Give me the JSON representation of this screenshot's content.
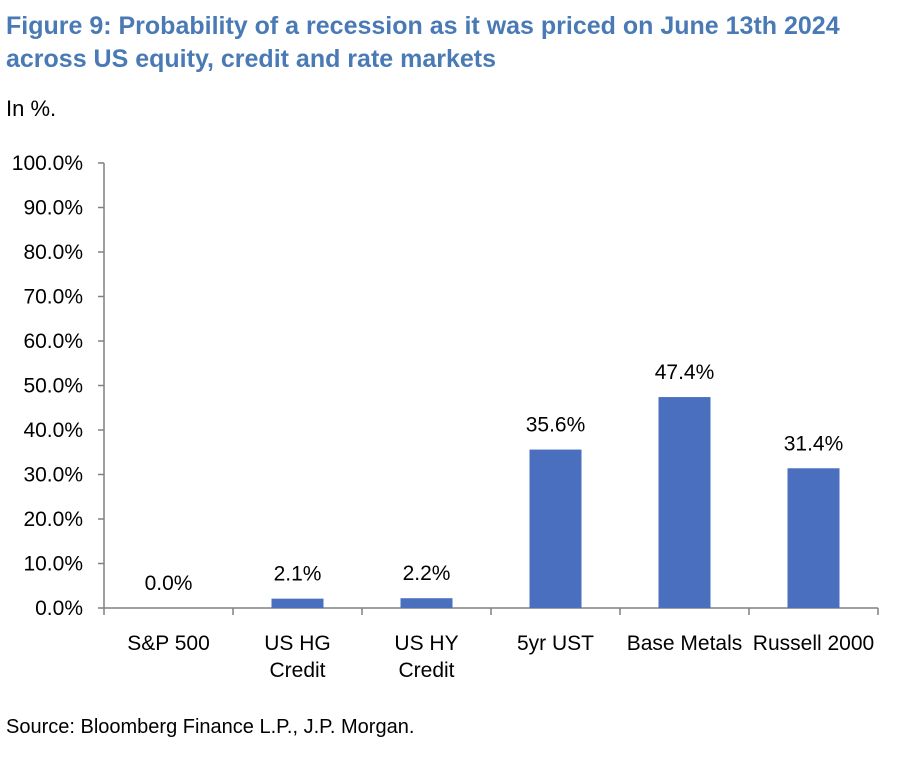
{
  "header": {
    "title_line1": "Figure 9: Probability of a recession as it was priced on June 13th 2024",
    "title_line2": "across US equity, credit and rate markets",
    "subtitle": "In %."
  },
  "footer": {
    "source": "Source: Bloomberg Finance L.P., J.P. Morgan."
  },
  "colors": {
    "bar": "#4a6fbf",
    "title": "#4a7ab5"
  },
  "chart_data": {
    "type": "bar",
    "title": "Probability of a recession as it was priced on June 13th 2024 across US equity, credit and rate markets",
    "xlabel": "",
    "ylabel": "In %.",
    "ylim": [
      0,
      100
    ],
    "yticks": [
      "0.0%",
      "10.0%",
      "20.0%",
      "30.0%",
      "40.0%",
      "50.0%",
      "60.0%",
      "70.0%",
      "80.0%",
      "90.0%",
      "100.0%"
    ],
    "grid": false,
    "legend": "none",
    "categories": [
      [
        "S&P 500"
      ],
      [
        "US HG",
        "Credit"
      ],
      [
        "US HY",
        "Credit"
      ],
      [
        "5yr UST"
      ],
      [
        "Base Metals"
      ],
      [
        "Russell 2000"
      ]
    ],
    "values": [
      0.0,
      2.1,
      2.2,
      35.6,
      47.4,
      31.4
    ],
    "data_labels": [
      "0.0%",
      "2.1%",
      "2.2%",
      "35.6%",
      "47.4%",
      "31.4%"
    ]
  }
}
